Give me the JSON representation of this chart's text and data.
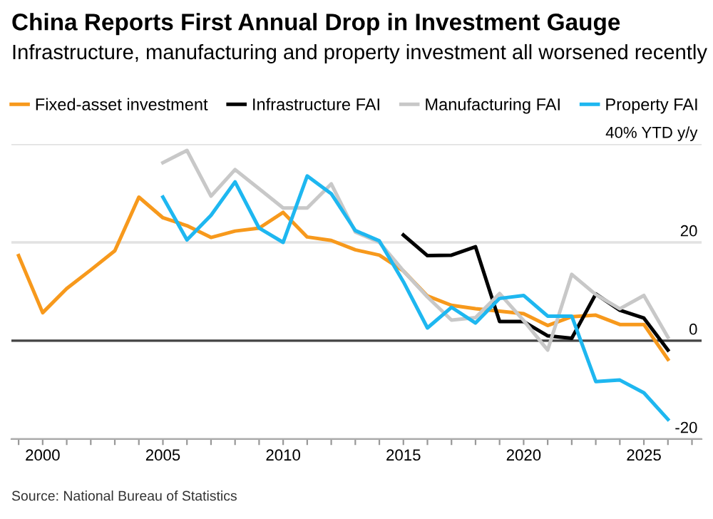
{
  "chart_data": {
    "type": "line",
    "title": "China Reports First Annual Drop in Investment Gauge",
    "subtitle": "Infrastructure, manufacturing and property investment all worsened recently",
    "annotations": [
      "Source: National Bureau of Statistics"
    ],
    "series": [
      {
        "name": "Fixed-asset investment",
        "color": "#f7991c",
        "x": [
          1999,
          2000,
          2001,
          2002,
          2003,
          2004,
          2005,
          2006,
          2007,
          2008,
          2009,
          2010,
          2011,
          2012,
          2013,
          2014,
          2015,
          2016,
          2017,
          2018,
          2019,
          2020,
          2021,
          2022,
          2023,
          2024,
          2025,
          2026
        ],
        "values": [
          17.3,
          5.7,
          10.6,
          14.4,
          18.3,
          29.2,
          25.0,
          23.4,
          21.0,
          22.3,
          22.9,
          26.1,
          21.1,
          20.4,
          18.5,
          17.4,
          14.2,
          9.1,
          7.2,
          6.5,
          6.0,
          5.5,
          3.1,
          4.9,
          5.2,
          3.3,
          3.3,
          -3.8
        ]
      },
      {
        "name": "Infrastructure FAI",
        "color": "#000000",
        "x": [
          2015,
          2016,
          2017,
          2018,
          2019,
          2020,
          2021,
          2022,
          2023,
          2024,
          2025,
          2026
        ],
        "values": [
          21.5,
          17.3,
          17.4,
          19.1,
          3.9,
          3.9,
          1.0,
          0.5,
          9.5,
          6.2,
          4.6,
          -1.9
        ]
      },
      {
        "name": "Manufacturing FAI",
        "color": "#c8c8c8",
        "x": [
          2005,
          2006,
          2007,
          2008,
          2009,
          2010,
          2011,
          2012,
          2013,
          2014,
          2015,
          2016,
          2017,
          2018,
          2019,
          2020,
          2021,
          2022,
          2023,
          2024,
          2025,
          2026
        ],
        "values": [
          36.2,
          38.7,
          29.4,
          34.8,
          30.9,
          27.0,
          27.0,
          31.9,
          22.1,
          20.0,
          14.2,
          8.9,
          4.2,
          4.7,
          9.6,
          4.1,
          -1.9,
          13.5,
          9.4,
          6.5,
          9.2,
          0.7
        ]
      },
      {
        "name": "Property FAI",
        "color": "#1eb7f0",
        "x": [
          2005,
          2006,
          2007,
          2008,
          2009,
          2010,
          2011,
          2012,
          2013,
          2014,
          2015,
          2016,
          2017,
          2018,
          2019,
          2020,
          2021,
          2022,
          2023,
          2024,
          2025,
          2026
        ],
        "values": [
          29.2,
          20.5,
          25.5,
          32.3,
          22.9,
          20.0,
          33.5,
          29.9,
          22.4,
          20.3,
          12.0,
          2.6,
          6.8,
          3.6,
          8.6,
          9.2,
          5.0,
          5.0,
          -8.3,
          -8.0,
          -10.6,
          -16.0
        ]
      }
    ],
    "xlim": [
      1998.7,
      2027.4
    ],
    "xticks": [
      {
        "value": 1999,
        "label": null
      },
      2000,
      {
        "value": 2001,
        "label": null
      },
      {
        "value": 2002,
        "label": null
      },
      {
        "value": 2003,
        "label": null
      },
      {
        "value": 2004,
        "label": null
      },
      2005,
      {
        "value": 2006,
        "label": null
      },
      {
        "value": 2007,
        "label": null
      },
      {
        "value": 2008,
        "label": null
      },
      {
        "value": 2009,
        "label": null
      },
      2010,
      {
        "value": 2011,
        "label": null
      },
      {
        "value": 2012,
        "label": null
      },
      {
        "value": 2013,
        "label": null
      },
      {
        "value": 2014,
        "label": null
      },
      2015,
      {
        "value": 2016,
        "label": null
      },
      {
        "value": 2017,
        "label": null
      },
      {
        "value": 2018,
        "label": null
      },
      {
        "value": 2019,
        "label": null
      },
      2020,
      {
        "value": 2021,
        "label": null
      },
      {
        "value": 2022,
        "label": null
      },
      {
        "value": 2023,
        "label": null
      },
      {
        "value": 2024,
        "label": null
      },
      2025,
      {
        "value": 2026,
        "label": null
      },
      {
        "value": 2027,
        "label": null
      }
    ],
    "ylim": [
      -20,
      40
    ],
    "yticks": [
      {
        "value": 40,
        "label": "40% YTD y/y"
      },
      20,
      0,
      -20
    ],
    "ref_lines": [
      {
        "axis": "y",
        "value": 0,
        "color": "#444444"
      }
    ],
    "grid": "y",
    "legend": "top left",
    "marker": "none",
    "line_style": "solid"
  }
}
